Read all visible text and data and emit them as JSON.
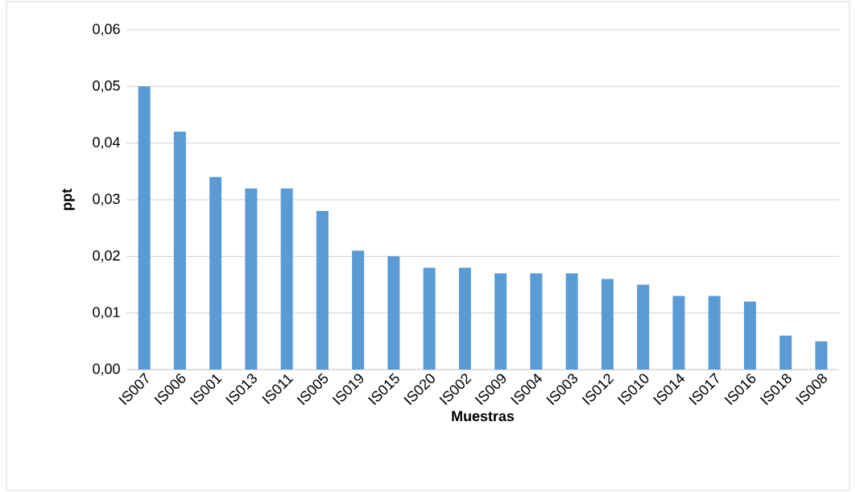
{
  "chart_data": {
    "type": "bar",
    "xlabel": "Muestras",
    "ylabel": "ppt",
    "categories": [
      "IS007",
      "IS006",
      "IS001",
      "IS013",
      "IS011",
      "IS005",
      "IS019",
      "IS015",
      "IS020",
      "IS002",
      "IS009",
      "IS004",
      "IS003",
      "IS012",
      "IS010",
      "IS014",
      "IS017",
      "IS016",
      "IS018",
      "IS008"
    ],
    "values": [
      0.05,
      0.042,
      0.034,
      0.032,
      0.032,
      0.028,
      0.021,
      0.02,
      0.018,
      0.018,
      0.017,
      0.017,
      0.017,
      0.016,
      0.015,
      0.013,
      0.013,
      0.012,
      0.006,
      0.005
    ],
    "color": "#5b9bd5",
    "ylim": [
      0,
      0.06
    ],
    "yticks": [
      {
        "value": 0,
        "label": "0,00"
      },
      {
        "value": 0.01,
        "label": "0,01"
      },
      {
        "value": 0.02,
        "label": "0,02"
      },
      {
        "value": 0.03,
        "label": "0,03"
      },
      {
        "value": 0.04,
        "label": "0,04"
      },
      {
        "value": 0.05,
        "label": "0,05"
      },
      {
        "value": 0.06,
        "label": "0,06"
      }
    ],
    "grid": "y"
  }
}
